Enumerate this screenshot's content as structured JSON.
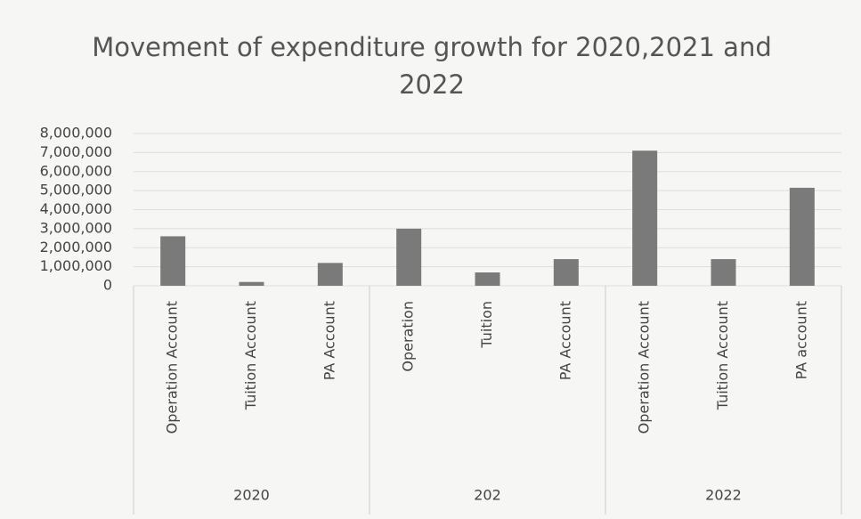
{
  "chart_data": {
    "type": "bar",
    "title": "Movement of expenditure growth for 2020,2021 and 2022",
    "categories": [
      "Operation Account",
      "Tuition Account",
      "PA Account",
      "Operation",
      "Tuition",
      "PA Account",
      "Operation Account",
      "Tuition Account",
      "PA account"
    ],
    "groups": [
      "2020",
      "202",
      "2022"
    ],
    "values": [
      2600000,
      200000,
      1200000,
      3000000,
      700000,
      1400000,
      7100000,
      1400000,
      5150000
    ],
    "color": "#7a7a7a",
    "ylim": [
      0,
      8000000
    ],
    "yticks": [
      0,
      {
        "value": 1000000,
        "label": "1,000,000"
      },
      {
        "value": 2000000,
        "label": "2,000,000"
      },
      {
        "value": 3000000,
        "label": "3,000,000"
      },
      {
        "value": 4000000,
        "label": "4,000,000"
      },
      {
        "value": 5000000,
        "label": "5,000,000"
      },
      {
        "value": 6000000,
        "label": "6,000,000"
      },
      {
        "value": 7000000,
        "label": "7,000,000"
      },
      {
        "value": 8000000,
        "label": "8,000,000"
      }
    ],
    "grid": true
  }
}
